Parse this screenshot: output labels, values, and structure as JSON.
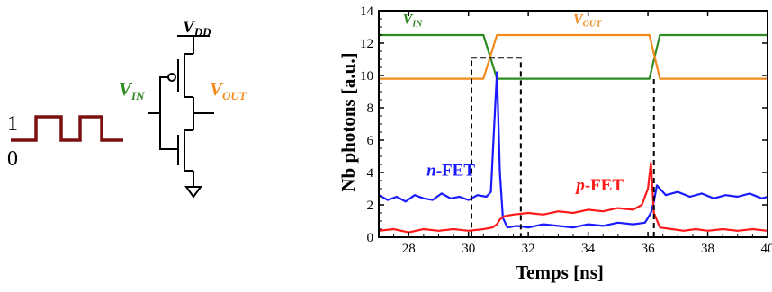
{
  "schematic": {
    "input_wave_high": "1",
    "input_wave_low": "0",
    "vdd": {
      "main": "V",
      "sub": "DD"
    },
    "vin": {
      "main": "V",
      "sub": "IN"
    },
    "vout": {
      "main": "V",
      "sub": "OUT"
    },
    "colors": {
      "wave": "#7b1010",
      "vin": "#2e8b22",
      "vout": "#f28a1c",
      "lines": "#000000"
    }
  },
  "chart_data": {
    "type": "line",
    "title": "",
    "xlabel": "Temps [ns]",
    "ylabel": "Nb photons [a.u.]",
    "xlim": [
      27,
      40
    ],
    "ylim": [
      0,
      14
    ],
    "xticks": [
      28,
      30,
      32,
      34,
      36,
      38,
      40
    ],
    "yticks": [
      0,
      2,
      4,
      6,
      8,
      10,
      12,
      14
    ],
    "xtick_labels": [
      "28",
      "30",
      "32",
      "34",
      "36",
      "38",
      "40"
    ],
    "ytick_labels": [
      "0",
      "2",
      "4",
      "6",
      "8",
      "10",
      "12",
      "14"
    ],
    "grid": false,
    "annotations": [
      {
        "text_main": "V",
        "text_sub": "IN",
        "color": "#2e8b22",
        "x": 27.8,
        "y": 13.2
      },
      {
        "text_main": "V",
        "text_sub": "OUT",
        "color": "#f28a1c",
        "x": 33.5,
        "y": 13.2
      },
      {
        "text_prefix": "n",
        "text_suffix": "-FET",
        "color": "#1a1aff",
        "x": 28.6,
        "y": 3.8
      },
      {
        "text_prefix": "p",
        "text_suffix": "-FET",
        "color": "#ff1a1a",
        "x": 33.6,
        "y": 2.9
      }
    ],
    "series": [
      {
        "color": "#2e8b22",
        "x": [
          27,
          30.5,
          30.95,
          36.05,
          36.4,
          40
        ],
        "y": [
          12.5,
          12.5,
          9.8,
          9.8,
          12.5,
          12.5
        ]
      },
      {
        "color": "#f28a1c",
        "x": [
          27,
          30.5,
          30.95,
          36.05,
          36.4,
          40
        ],
        "y": [
          9.8,
          9.8,
          12.5,
          12.5,
          9.8,
          9.8
        ]
      },
      {
        "color": "#1a1aff",
        "x": [
          27.0,
          27.3,
          27.6,
          27.9,
          28.2,
          28.5,
          28.8,
          29.1,
          29.4,
          29.7,
          30.0,
          30.3,
          30.6,
          30.75,
          30.85,
          30.95,
          31.05,
          31.15,
          31.3,
          31.6,
          32.0,
          32.5,
          33.0,
          33.5,
          34.0,
          34.5,
          35.0,
          35.5,
          35.9,
          36.1,
          36.2,
          36.3,
          36.6,
          37.0,
          37.4,
          37.8,
          38.2,
          38.6,
          39.0,
          39.4,
          39.8,
          40.0
        ],
        "y": [
          2.6,
          2.3,
          2.5,
          2.2,
          2.6,
          2.4,
          2.3,
          2.7,
          2.4,
          2.5,
          2.3,
          2.6,
          2.5,
          2.8,
          6.5,
          10.2,
          4.0,
          1.2,
          0.6,
          0.7,
          0.6,
          0.8,
          0.7,
          0.6,
          0.8,
          0.7,
          0.9,
          0.8,
          0.9,
          1.5,
          2.2,
          3.2,
          2.6,
          2.8,
          2.5,
          2.7,
          2.4,
          2.6,
          2.5,
          2.7,
          2.4,
          2.5
        ]
      },
      {
        "color": "#ff1a1a",
        "x": [
          27.0,
          27.5,
          28.0,
          28.5,
          29.0,
          29.5,
          30.0,
          30.5,
          30.8,
          30.95,
          31.05,
          31.2,
          31.5,
          32.0,
          32.5,
          33.0,
          33.5,
          34.0,
          34.5,
          35.0,
          35.5,
          35.8,
          36.0,
          36.1,
          36.2,
          36.4,
          36.8,
          37.2,
          37.6,
          38.0,
          38.5,
          39.0,
          39.5,
          40.0
        ],
        "y": [
          0.4,
          0.5,
          0.3,
          0.5,
          0.4,
          0.5,
          0.4,
          0.5,
          0.6,
          0.8,
          1.1,
          1.3,
          1.4,
          1.5,
          1.4,
          1.6,
          1.5,
          1.7,
          1.6,
          1.8,
          1.7,
          2.0,
          3.0,
          4.6,
          1.5,
          0.6,
          0.5,
          0.4,
          0.5,
          0.4,
          0.5,
          0.4,
          0.5,
          0.4
        ]
      }
    ],
    "dashed_boxes": [
      {
        "x0": 30.1,
        "x1": 31.75,
        "y0": 0,
        "y1": 11.1
      }
    ],
    "dashed_lines": [
      {
        "x": 36.2,
        "y0": 0,
        "y1": 9.8
      }
    ]
  }
}
